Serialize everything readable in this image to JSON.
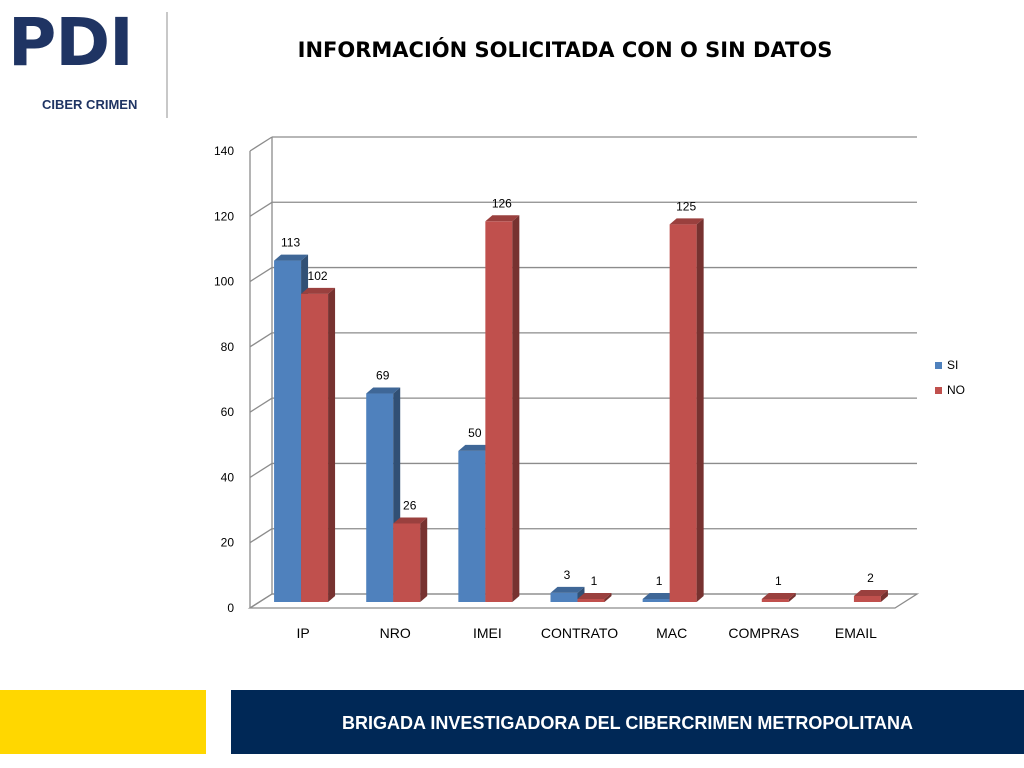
{
  "logo": {
    "main": "PDI",
    "sub": "CIBER CRIMEN"
  },
  "footer": {
    "text": "BRIGADA INVESTIGADORA DEL CIBERCRIMEN METROPOLITANA"
  },
  "chart_data": {
    "type": "bar",
    "title": "INFORMACIÓN SOLICITADA CON O SIN DATOS",
    "categories": [
      "IP",
      "NRO",
      "IMEI",
      "CONTRATO",
      "MAC",
      "COMPRAS",
      "EMAIL"
    ],
    "series": [
      {
        "name": "SI",
        "values": [
          113,
          69,
          50,
          3,
          1,
          0,
          null
        ],
        "labels": [
          "113",
          "69",
          "50",
          "3",
          "1",
          "",
          ""
        ],
        "color": "#4f81bd"
      },
      {
        "name": "NO",
        "values": [
          102,
          26,
          126,
          1,
          125,
          1,
          2
        ],
        "labels": [
          "102",
          "26",
          "126",
          "1",
          "125",
          "1",
          "2"
        ],
        "color": "#c0504d"
      }
    ],
    "ylim": [
      0,
      140
    ],
    "yticks": [
      0,
      20,
      40,
      60,
      80,
      100,
      120,
      140
    ],
    "ytick_labels": [
      "0",
      "20",
      "40",
      "60",
      "80",
      "100",
      "120",
      "140"
    ],
    "grid": true,
    "legend_position": "right",
    "style": "3d-clustered-column"
  }
}
